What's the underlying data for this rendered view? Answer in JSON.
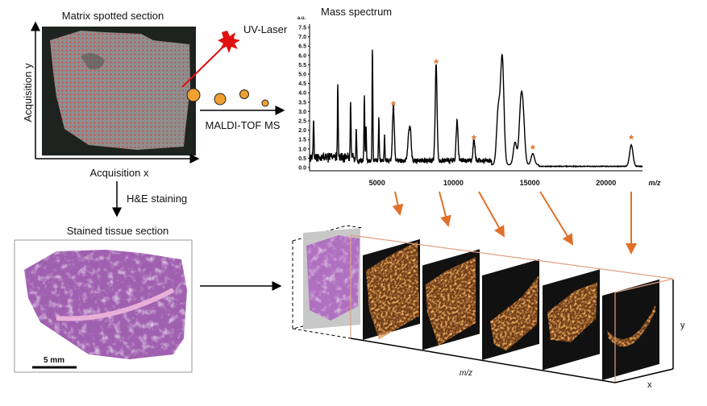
{
  "top_left": {
    "title": "Matrix spotted section",
    "axis_y": "Acquisition y",
    "axis_x": "Acquisition x",
    "laser_label": "UV-Laser",
    "ms_label": "MALDI-TOF MS"
  },
  "staining": {
    "label": "H&E staining"
  },
  "stained": {
    "title": "Stained tissue section",
    "scale_bar": "5 mm"
  },
  "spectrum": {
    "title": "Mass spectrum"
  },
  "cube": {
    "axis_mz": "m/z",
    "axis_y": "y",
    "axis_x": "x"
  },
  "colors": {
    "accent": "#e0702a",
    "laser": "#e01010",
    "ion": "#f0a030"
  },
  "chart_data": {
    "type": "line",
    "title": "Mass spectrum",
    "ylabel": "a.u.",
    "xlabel": "m/z",
    "xlim": [
      600,
      22400
    ],
    "ylim": [
      0,
      7.5
    ],
    "yticks": [
      "0.0",
      "0.5",
      "1.0",
      "1.5",
      "2.0",
      "2.5",
      "3.0",
      "3.5",
      "4.0",
      "4.5",
      "5.0",
      "5.5",
      "6.0",
      "6.5",
      "7.0",
      "7.5"
    ],
    "xticks": [
      "5000",
      "10000",
      "15000",
      "20000"
    ],
    "grid": false,
    "peaks": [
      {
        "mz": 845,
        "intensity": 1.85
      },
      {
        "mz": 2430,
        "intensity": 3.85
      },
      {
        "mz": 3270,
        "intensity": 3.0
      },
      {
        "mz": 3640,
        "intensity": 1.75
      },
      {
        "mz": 4170,
        "intensity": 3.45
      },
      {
        "mz": 4280,
        "intensity": 1.75
      },
      {
        "mz": 4700,
        "intensity": 6.05
      },
      {
        "mz": 5120,
        "intensity": 2.25
      },
      {
        "mz": 5490,
        "intensity": 1.3
      },
      {
        "mz": 6070,
        "intensity": 2.95,
        "marked": true
      },
      {
        "mz": 7060,
        "intensity": 1.2
      },
      {
        "mz": 7180,
        "intensity": 1.55
      },
      {
        "mz": 8870,
        "intensity": 5.2,
        "marked": true
      },
      {
        "mz": 10240,
        "intensity": 2.15
      },
      {
        "mz": 11350,
        "intensity": 1.15,
        "marked": true
      },
      {
        "mz": 12940,
        "intensity": 2.9
      },
      {
        "mz": 13200,
        "intensity": 5.7
      },
      {
        "mz": 14040,
        "intensity": 1.2
      },
      {
        "mz": 14410,
        "intensity": 2.8
      },
      {
        "mz": 14570,
        "intensity": 2.3
      },
      {
        "mz": 15200,
        "intensity": 0.6,
        "marked": true
      },
      {
        "mz": 21650,
        "intensity": 1.15,
        "marked": true
      }
    ]
  }
}
